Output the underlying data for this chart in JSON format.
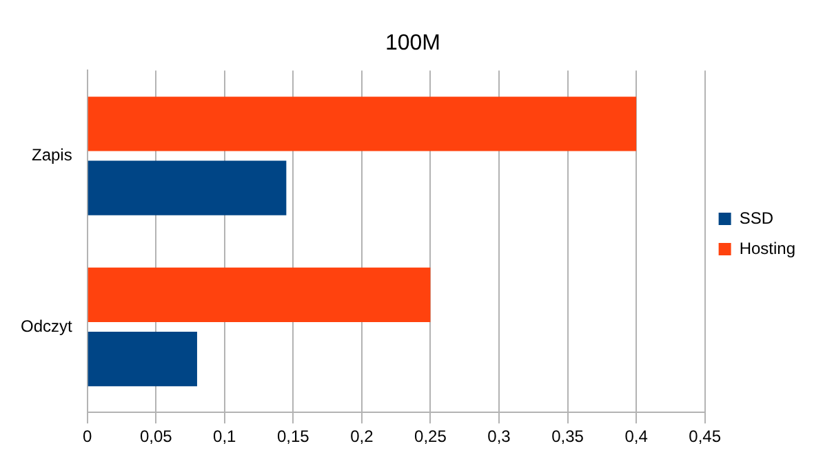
{
  "chart_data": {
    "type": "bar",
    "orientation": "horizontal",
    "title": "100M",
    "categories": [
      "Zapis",
      "Odczyt"
    ],
    "series": [
      {
        "name": "Hosting",
        "color": "#ff420e",
        "values": [
          0.4,
          0.25
        ]
      },
      {
        "name": "SSD",
        "color": "#004586",
        "values": [
          0.145,
          0.08
        ]
      }
    ],
    "xlim": [
      0,
      0.45
    ],
    "xticks": [
      0,
      {
        "value": 0.05,
        "label": "0,05"
      },
      {
        "value": 0.1,
        "label": "0,1"
      },
      {
        "value": 0.15,
        "label": "0,15"
      },
      {
        "value": 0.2,
        "label": "0,2"
      },
      {
        "value": 0.25,
        "label": "0,25"
      },
      {
        "value": 0.3,
        "label": "0,3"
      },
      {
        "value": 0.35,
        "label": "0,35"
      },
      {
        "value": 0.4,
        "label": "0,4"
      },
      {
        "value": 0.45,
        "label": "0,45"
      }
    ],
    "grid": "x",
    "legend": "right"
  }
}
